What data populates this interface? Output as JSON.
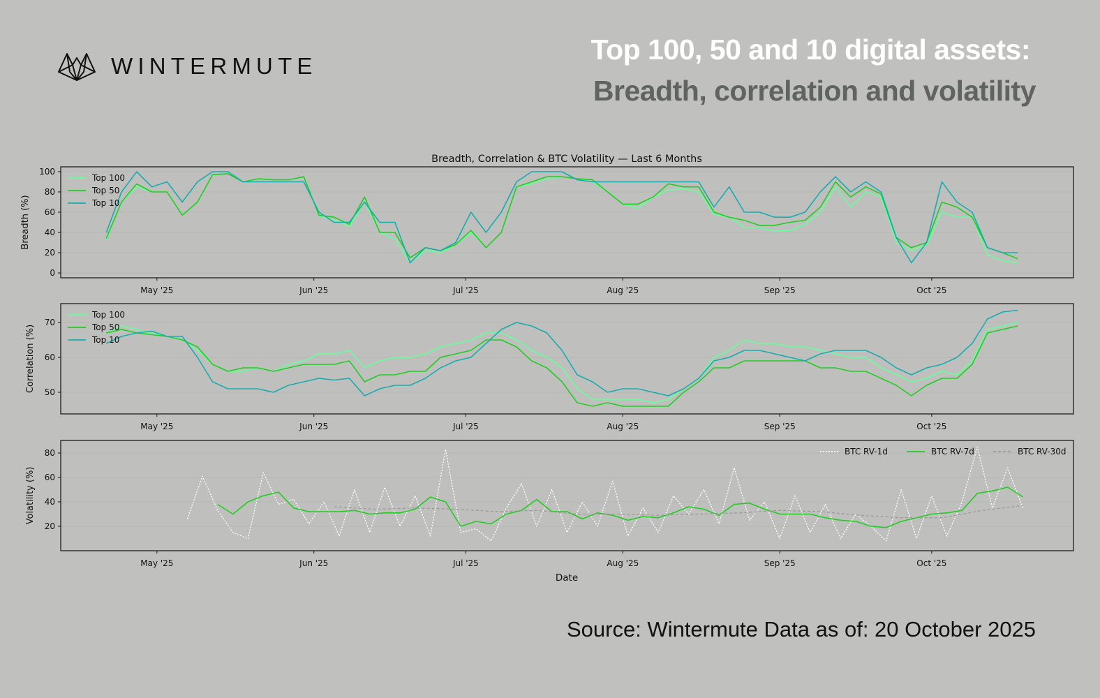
{
  "header": {
    "brand": "WINTERMUTE",
    "title_line1": "Top 100, 50 and 10 digital assets:",
    "title_line2": "Breadth, correlation and volatility"
  },
  "footer": {
    "source": "Source: Wintermute  Data as of: 20 October 2025"
  },
  "colors": {
    "top100": "#66ff99",
    "top50": "#22cc22",
    "top10": "#1aabad",
    "rv1d": "#ffffff",
    "rv7d": "#22cc22",
    "rv30d": "#9a9a9a"
  },
  "chart_data": {
    "title": "Breadth, Correlation & BTC Volatility — Last 6 Months",
    "xlabel": "Date",
    "x_unit": "days since 2025-04-21",
    "xlim": [
      -9,
      191
    ],
    "x_ticks": [
      {
        "day": 10,
        "label": "May '25"
      },
      {
        "day": 41,
        "label": "Jun '25"
      },
      {
        "day": 71,
        "label": "Jul '25"
      },
      {
        "day": 102,
        "label": "Aug '25"
      },
      {
        "day": 133,
        "label": "Sep '25"
      },
      {
        "day": 163,
        "label": "Oct '25"
      }
    ],
    "panels": [
      {
        "type": "line",
        "ylabel": "Breadth (%)",
        "ylim": [
          -4.8,
          104.8
        ],
        "y_ticks": [
          0,
          20,
          40,
          60,
          80,
          100
        ],
        "legend": "top-left",
        "series": [
          {
            "name": "Top 100",
            "color_key": "top100",
            "style": "solid",
            "start_day": 0,
            "step_days": 3,
            "values": [
              33,
              70,
              85,
              80,
              80,
              57,
              70,
              97,
              98,
              90,
              93,
              92,
              92,
              95,
              56,
              52,
              46,
              70,
              40,
              33,
              10,
              22,
              20,
              28,
              40,
              25,
              40,
              85,
              88,
              93,
              95,
              93,
              90,
              80,
              68,
              64,
              75,
              82,
              83,
              80,
              58,
              55,
              45,
              45,
              41,
              42,
              48,
              60,
              85,
              65,
              80,
              75,
              30,
              22,
              28,
              60,
              55,
              55,
              18,
              12,
              10
            ]
          },
          {
            "name": "Top 50",
            "color_key": "top50",
            "style": "solid",
            "start_day": 0,
            "step_days": 3,
            "values": [
              34,
              70,
              88,
              80,
              80,
              57,
              70,
              97,
              98,
              90,
              93,
              92,
              92,
              95,
              57,
              55,
              48,
              75,
              40,
              40,
              15,
              25,
              22,
              28,
              42,
              25,
              40,
              85,
              90,
              95,
              95,
              93,
              92,
              80,
              68,
              68,
              75,
              88,
              85,
              85,
              60,
              55,
              52,
              47,
              47,
              50,
              52,
              65,
              90,
              75,
              85,
              78,
              35,
              25,
              30,
              70,
              65,
              55,
              25,
              20,
              14
            ]
          },
          {
            "name": "Top 10",
            "color_key": "top10",
            "style": "solid",
            "start_day": 0,
            "step_days": 3,
            "values": [
              40,
              80,
              100,
              85,
              90,
              70,
              90,
              100,
              100,
              90,
              90,
              90,
              90,
              90,
              60,
              50,
              50,
              70,
              50,
              50,
              10,
              25,
              22,
              30,
              60,
              40,
              60,
              90,
              100,
              100,
              100,
              92,
              90,
              90,
              90,
              90,
              90,
              90,
              90,
              90,
              65,
              85,
              60,
              60,
              55,
              55,
              60,
              80,
              95,
              80,
              90,
              80,
              35,
              10,
              30,
              90,
              70,
              60,
              25,
              20,
              20
            ]
          }
        ]
      },
      {
        "type": "line",
        "ylabel": "Correlation (%)",
        "ylim": [
          43.8,
          75.4
        ],
        "y_ticks": [
          50,
          60,
          70
        ],
        "legend": "top-left",
        "series": [
          {
            "name": "Top 100",
            "color_key": "top100",
            "style": "solid",
            "start_day": 0,
            "step_days": 3,
            "values": [
              67,
              69,
              68,
              67,
              66,
              65,
              62,
              58,
              56,
              56,
              57,
              56,
              58,
              59,
              61,
              61,
              62,
              57,
              59,
              60,
              60,
              61,
              63,
              64,
              65,
              67,
              67,
              65,
              62,
              60,
              57,
              51,
              48,
              48,
              48,
              48,
              47,
              48,
              51,
              54,
              60,
              62,
              65,
              64,
              64,
              63,
              63,
              62,
              61,
              60,
              60,
              57,
              55,
              53,
              54,
              56,
              55,
              59,
              68,
              69,
              70
            ]
          },
          {
            "name": "Top 50",
            "color_key": "top50",
            "style": "solid",
            "start_day": 0,
            "step_days": 3,
            "values": [
              67,
              68,
              67,
              66.5,
              66,
              65,
              63,
              58,
              56,
              57,
              57,
              56,
              57,
              58,
              58,
              58,
              59,
              53,
              55,
              55,
              56,
              56,
              60,
              61,
              62,
              65,
              65,
              63,
              59,
              57,
              53,
              47,
              46,
              47,
              46,
              46,
              46,
              46,
              50,
              53,
              57,
              57,
              59,
              59,
              59,
              59,
              59,
              57,
              57,
              56,
              56,
              54,
              52,
              49,
              52,
              54,
              54,
              58,
              67,
              68,
              69
            ]
          },
          {
            "name": "Top 10",
            "color_key": "top10",
            "style": "solid",
            "start_day": 0,
            "step_days": 3,
            "values": [
              64,
              66,
              67,
              67.5,
              66,
              66,
              60,
              53,
              51,
              51,
              51,
              50,
              52,
              53,
              54,
              53.5,
              54,
              49,
              51,
              52,
              52,
              54,
              57,
              59,
              60,
              64,
              68,
              70,
              69,
              67,
              62,
              55,
              53,
              50,
              51,
              51,
              50,
              49,
              51,
              54,
              59,
              60,
              62,
              62,
              61,
              60,
              59,
              61,
              62,
              62,
              62,
              60,
              57,
              55,
              57,
              58,
              60,
              64,
              71,
              73,
              73.5
            ]
          }
        ]
      },
      {
        "type": "line",
        "ylabel": "Volatility (%)",
        "ylim": [
          0,
          90.3
        ],
        "y_ticks": [
          20,
          40,
          60,
          80
        ],
        "legend": "top-right",
        "series": [
          {
            "name": "BTC RV-1d",
            "color_key": "rv1d",
            "style": "dotted",
            "start_day": 16,
            "step_days": 3,
            "values": [
              26,
              61,
              33,
              15,
              10,
              64,
              38,
              42,
              22,
              40,
              12,
              50,
              15,
              52,
              20,
              45,
              12,
              83,
              15,
              18,
              8,
              35,
              55,
              20,
              50,
              15,
              40,
              20,
              57,
              12,
              35,
              15,
              45,
              30,
              50,
              22,
              68,
              25,
              40,
              10,
              45,
              15,
              38,
              10,
              30,
              20,
              8,
              50,
              10,
              45,
              12,
              40,
              85,
              35,
              68,
              35
            ]
          },
          {
            "name": "BTC RV-7d",
            "color_key": "rv7d",
            "style": "solid",
            "start_day": 22,
            "step_days": 3,
            "values": [
              38,
              30,
              40,
              45,
              48,
              35,
              32,
              32,
              32,
              33,
              30,
              31,
              31,
              34,
              44,
              40,
              20,
              24,
              22,
              30,
              33,
              42,
              32,
              32,
              26,
              31,
              29,
              25,
              28,
              27,
              31,
              36,
              34,
              29,
              38,
              39,
              34,
              30,
              30,
              30,
              27,
              25,
              24,
              20,
              19,
              24,
              27,
              30,
              31,
              33,
              47,
              49,
              52,
              44
            ]
          },
          {
            "name": "BTC RV-30d",
            "color_key": "rv30d",
            "style": "dashed",
            "start_day": 45,
            "step_days": 8,
            "values": [
              36,
              34,
              35,
              34,
              32,
              33,
              30,
              30,
              29,
              30,
              31,
              33,
              32,
              29,
              27,
              27,
              33,
              37
            ]
          }
        ]
      }
    ]
  }
}
